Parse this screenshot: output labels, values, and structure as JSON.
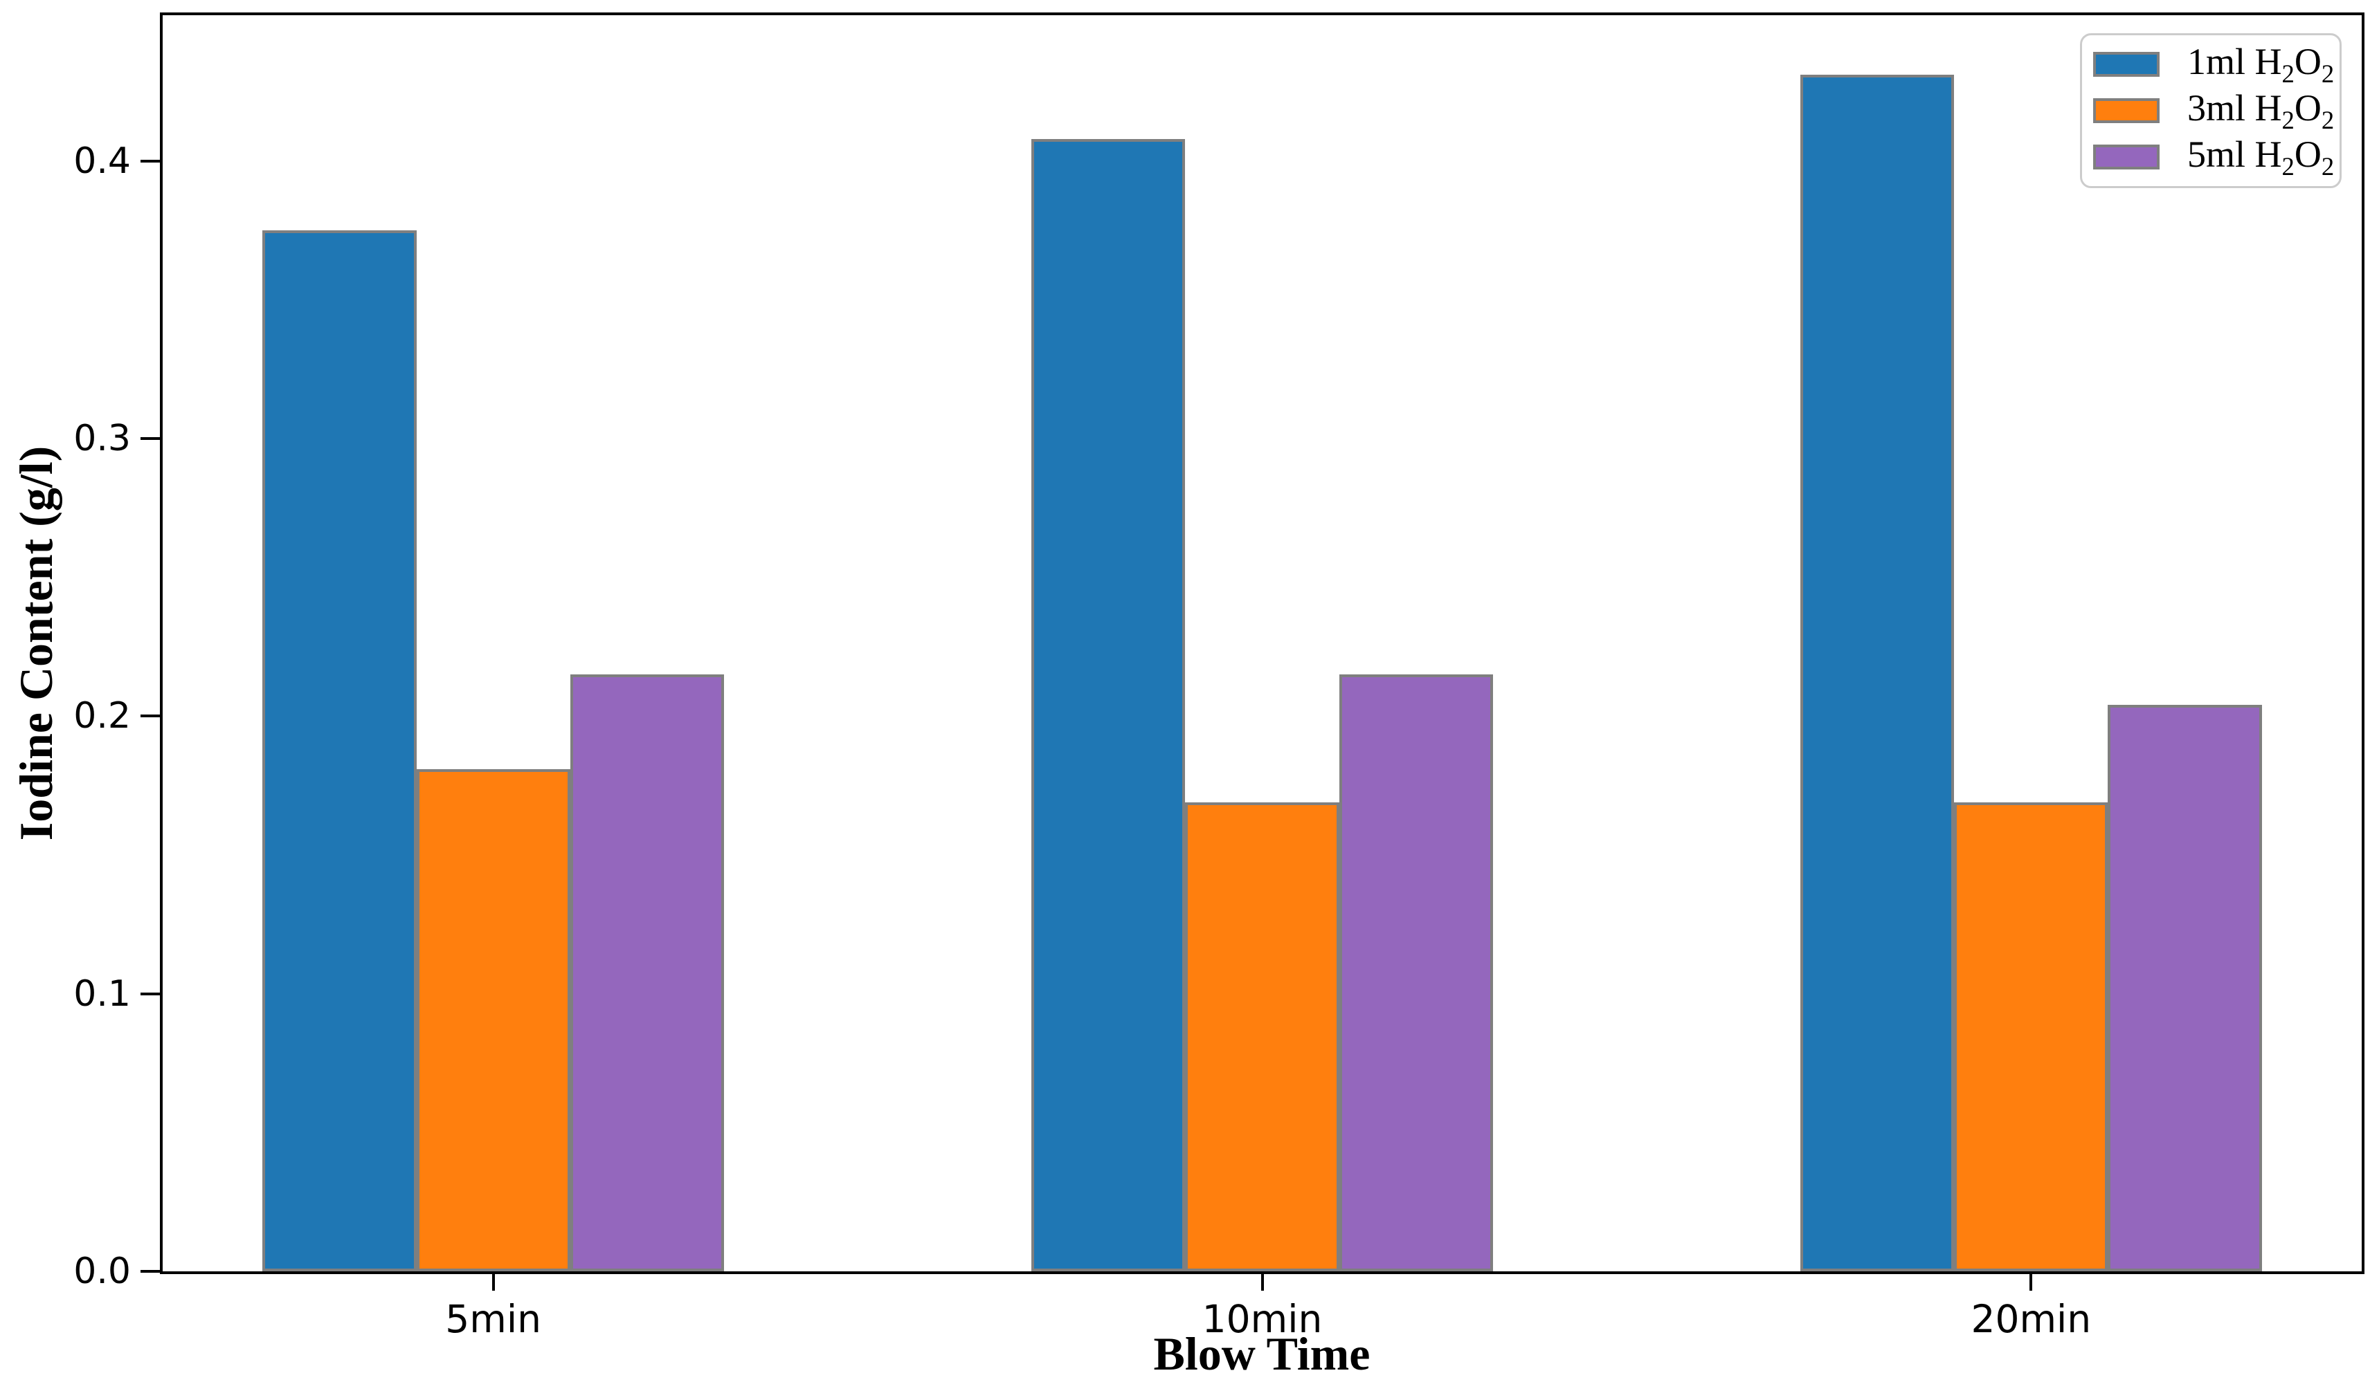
{
  "chart_data": {
    "type": "bar",
    "title": "",
    "xlabel": "Blow Time",
    "ylabel": "Iodine Content (g/l)",
    "categories": [
      "5min",
      "10min",
      "20min"
    ],
    "series": [
      {
        "name": "1ml H2O2",
        "color": "#1f77b4",
        "values": [
          0.375,
          0.408,
          0.431
        ]
      },
      {
        "name": "3ml H2O2",
        "color": "#ff7f0e",
        "values": [
          0.181,
          0.169,
          0.169
        ]
      },
      {
        "name": "5ml H2O2",
        "color": "#9467bd",
        "values": [
          0.215,
          0.215,
          0.204
        ]
      }
    ],
    "bar_edge_color": "#7f7f7f",
    "axis_color": "#000000",
    "yticks": [
      "0.0",
      "0.1",
      "0.2",
      "0.3",
      "0.4"
    ],
    "ylim": [
      0,
      0.4525
    ],
    "xlim": [
      -0.43,
      2.43
    ],
    "bar_width": 0.2,
    "bar_offsets": [
      -0.2,
      0,
      0.2
    ],
    "legend_position": "upper right",
    "grid": false,
    "background": "#ffffff"
  }
}
